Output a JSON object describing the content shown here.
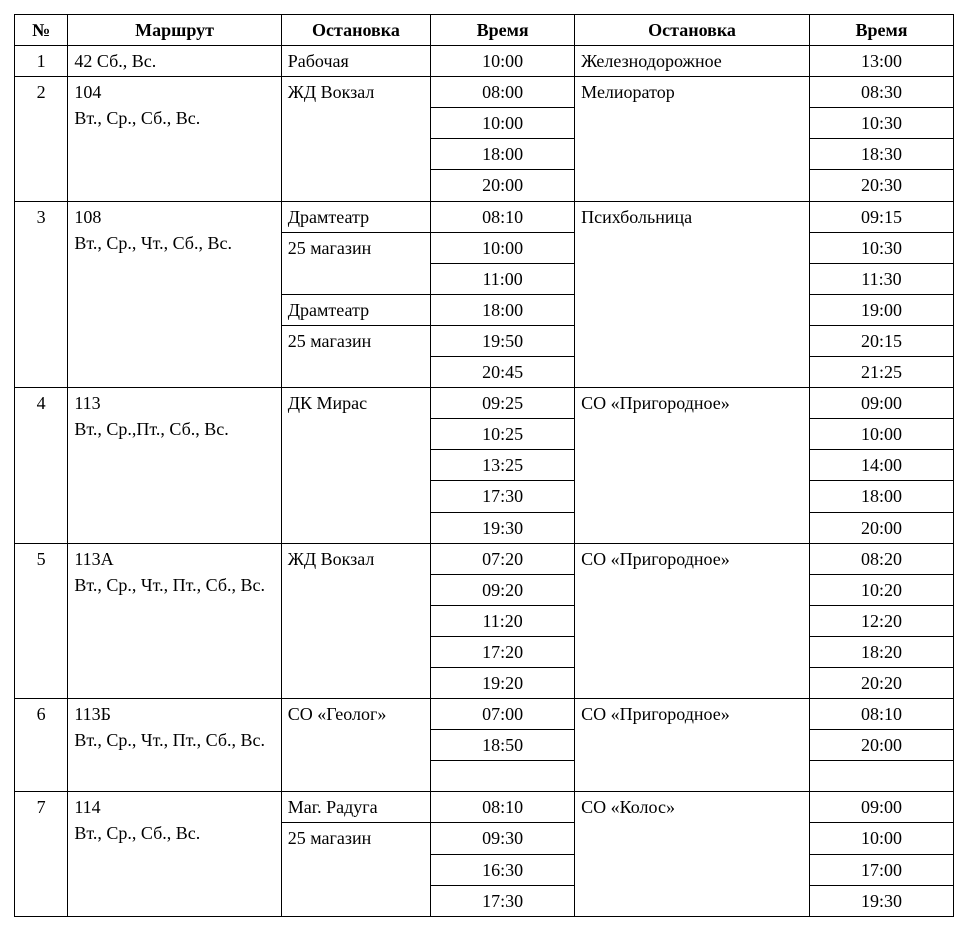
{
  "table": {
    "headers": [
      "№",
      "Маршрут",
      "Остановка",
      "Время",
      "Остановка",
      "Время"
    ],
    "col_align": [
      "center",
      "left",
      "left",
      "center",
      "left",
      "center"
    ],
    "routes": [
      {
        "num": "1",
        "route": "42 Сб., Вс.",
        "stop2": "Железнодорожное",
        "rows": [
          {
            "stop1": "Рабочая",
            "time1": "10:00",
            "time2": "13:00"
          }
        ]
      },
      {
        "num": "2",
        "route": "104\nВт., Ср., Сб., Вс.",
        "stop2": "Мелиоратор",
        "rows": [
          {
            "stop1": "ЖД Вокзал",
            "stop1_span": 4,
            "time1": "08:00",
            "time2": "08:30"
          },
          {
            "time1": "10:00",
            "time2": "10:30"
          },
          {
            "time1": "18:00",
            "time2": "18:30"
          },
          {
            "time1": "20:00",
            "time2": "20:30"
          }
        ]
      },
      {
        "num": "3",
        "route": "108\nВт., Ср., Чт., Сб., Вс.",
        "stop2": "Психбольница",
        "rows": [
          {
            "stop1": "Драмтеатр",
            "stop1_span": 1,
            "time1": "08:10",
            "time2": "09:15"
          },
          {
            "stop1": "25 магазин",
            "stop1_span": 2,
            "time1": "10:00",
            "time2": "10:30"
          },
          {
            "time1": "11:00",
            "time2": "11:30"
          },
          {
            "stop1": "Драмтеатр",
            "stop1_span": 1,
            "time1": "18:00",
            "time2": "19:00"
          },
          {
            "stop1": "25 магазин",
            "stop1_span": 2,
            "time1": "19:50",
            "time2": "20:15"
          },
          {
            "time1": "20:45",
            "time2": "21:25"
          }
        ]
      },
      {
        "num": "4",
        "route": "113\nВт., Ср.,Пт., Сб., Вс.",
        "stop2": "СО «Пригородное»",
        "rows": [
          {
            "stop1": "ДК Мирас",
            "stop1_span": 5,
            "time1": "09:25",
            "time2": "09:00"
          },
          {
            "time1": "10:25",
            "time2": "10:00"
          },
          {
            "time1": "13:25",
            "time2": "14:00"
          },
          {
            "time1": "17:30",
            "time2": "18:00"
          },
          {
            "time1": "19:30",
            "time2": "20:00"
          }
        ]
      },
      {
        "num": "5",
        "route": "113А\nВт., Ср., Чт., Пт., Сб., Вс.",
        "stop2": "СО «Пригородное»",
        "rows": [
          {
            "stop1": "ЖД Вокзал",
            "stop1_span": 5,
            "time1": "07:20",
            "time2": "08:20"
          },
          {
            "time1": "09:20",
            "time2": "10:20"
          },
          {
            "time1": "11:20",
            "time2": "12:20"
          },
          {
            "time1": "17:20",
            "time2": "18:20"
          },
          {
            "time1": "19:20",
            "time2": "20:20"
          }
        ]
      },
      {
        "num": "6",
        "route": "113Б\nВт., Ср., Чт., Пт., Сб., Вс.",
        "route_min_rows": 3,
        "stop2": "СО «Пригородное»",
        "rows": [
          {
            "stop1": "СО «Геолог»",
            "stop1_span": 2,
            "time1": "07:00",
            "time2": "08:10"
          },
          {
            "time1": "18:50",
            "time2": "20:00"
          }
        ]
      },
      {
        "num": "7",
        "route": "114\nВт., Ср., Сб., Вс.",
        "stop2": "СО «Колос»",
        "rows": [
          {
            "stop1": "Маг. Радуга",
            "stop1_span": 1,
            "time1": "08:10",
            "time2": "09:00"
          },
          {
            "stop1": "25 магазин",
            "stop1_span": 3,
            "time1": "09:30",
            "time2": "10:00"
          },
          {
            "time1": "16:30",
            "time2": "17:00"
          },
          {
            "time1": "17:30",
            "time2": "19:30"
          }
        ]
      }
    ]
  },
  "colors": {
    "text": "#000000",
    "background": "#ffffff",
    "border": "#000000"
  },
  "font": {
    "family": "Times New Roman",
    "size_pt": 13
  }
}
